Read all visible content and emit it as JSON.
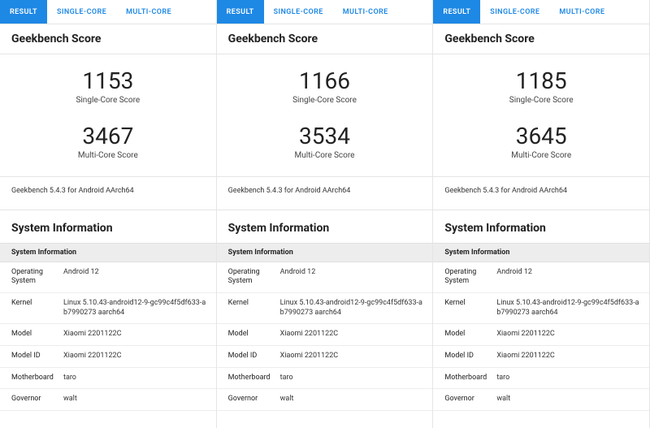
{
  "tabs": {
    "result": "RESULT",
    "single": "SINGLE-CORE",
    "multi": "MULTI-CORE"
  },
  "score_title": "Geekbench Score",
  "single_label": "Single-Core Score",
  "multi_label": "Multi-Core Score",
  "sys_title": "System Information",
  "sys_header": "System Information",
  "fields": {
    "os": "Operating System",
    "kernel": "Kernel",
    "model": "Model",
    "model_id": "Model ID",
    "motherboard": "Motherboard",
    "governor": "Governor"
  },
  "panels": [
    {
      "single": "1153",
      "multi": "3467",
      "version": "Geekbench 5.4.3 for Android AArch64",
      "os": "Android 12",
      "kernel": "Linux 5.10.43-android12-9-gc99c4f5df633-ab7990273 aarch64",
      "model": "Xiaomi 2201122C",
      "model_id": "Xiaomi 2201122C",
      "motherboard": "taro",
      "governor": "walt"
    },
    {
      "single": "1166",
      "multi": "3534",
      "version": "Geekbench 5.4.3 for Android AArch64",
      "os": "Android 12",
      "kernel": "Linux 5.10.43-android12-9-gc99c4f5df633-ab7990273 aarch64",
      "model": "Xiaomi 2201122C",
      "model_id": "Xiaomi 2201122C",
      "motherboard": "taro",
      "governor": "walt"
    },
    {
      "single": "1185",
      "multi": "3645",
      "version": "Geekbench 5.4.3 for Android AArch64",
      "os": "Android 12",
      "kernel": "Linux 5.10.43-android12-9-gc99c4f5df633-ab7990273 aarch64",
      "model": "Xiaomi 2201122C",
      "model_id": "Xiaomi 2201122C",
      "motherboard": "taro",
      "governor": "walt"
    }
  ],
  "colors": {
    "tab_active_bg": "#1e88e5",
    "tab_inactive_fg": "#1e88e5",
    "divider": "#e5e5e5",
    "sys_header_bg": "#ededed"
  }
}
